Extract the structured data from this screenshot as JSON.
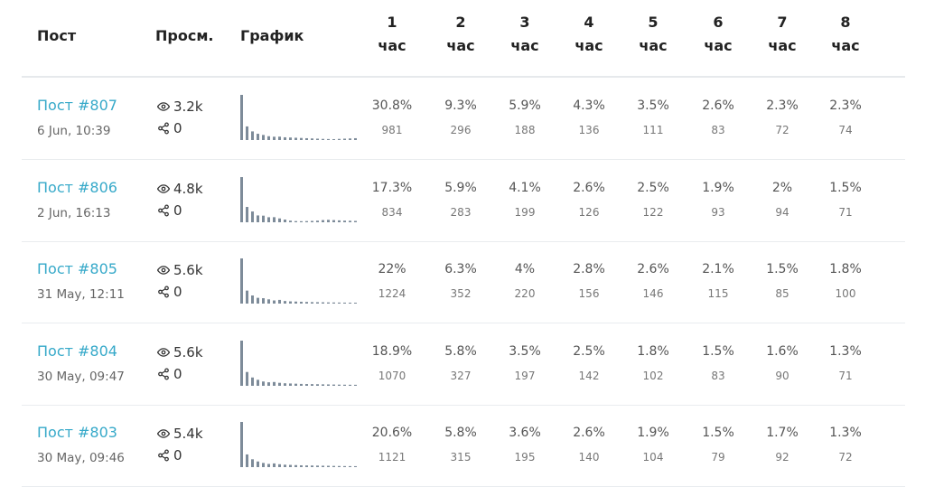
{
  "header": {
    "post": "Пост",
    "views": "Просм.",
    "graph": "График",
    "hours": [
      {
        "num": "1",
        "unit": "час"
      },
      {
        "num": "2",
        "unit": "час"
      },
      {
        "num": "3",
        "unit": "час"
      },
      {
        "num": "4",
        "unit": "час"
      },
      {
        "num": "5",
        "unit": "час"
      },
      {
        "num": "6",
        "unit": "час"
      },
      {
        "num": "7",
        "unit": "час"
      },
      {
        "num": "8",
        "unit": "час"
      }
    ]
  },
  "icons": {
    "views": "eye-icon",
    "shares": "share-icon"
  },
  "colors": {
    "link": "#36a9c9",
    "spark": "#7d8b99"
  },
  "rows": [
    {
      "title": "Пост #807",
      "date": "6 Jun, 10:39",
      "views": "3.2k",
      "shares": "0",
      "pct": [
        "30.8%",
        "9.3%",
        "5.9%",
        "4.3%",
        "3.5%",
        "2.6%",
        "2.3%",
        "2.3%"
      ],
      "cnt": [
        "981",
        "296",
        "188",
        "136",
        "111",
        "83",
        "72",
        "74"
      ],
      "spark": [
        981,
        296,
        188,
        136,
        111,
        83,
        72,
        74,
        60,
        55,
        50,
        45,
        40,
        35,
        30,
        25,
        22,
        20,
        25,
        30,
        35,
        40
      ]
    },
    {
      "title": "Пост #806",
      "date": "2 Jun, 16:13",
      "views": "4.8k",
      "shares": "0",
      "pct": [
        "17.3%",
        "5.9%",
        "4.1%",
        "2.6%",
        "2.5%",
        "1.9%",
        "2%",
        "1.5%"
      ],
      "cnt": [
        "834",
        "283",
        "199",
        "126",
        "122",
        "93",
        "94",
        "71"
      ],
      "spark": [
        834,
        283,
        199,
        126,
        122,
        93,
        94,
        71,
        50,
        30,
        22,
        20,
        22,
        25,
        30,
        40,
        45,
        40,
        35,
        30,
        28,
        25
      ]
    },
    {
      "title": "Пост #805",
      "date": "31 May, 12:11",
      "views": "5.6k",
      "shares": "0",
      "pct": [
        "22%",
        "6.3%",
        "4%",
        "2.8%",
        "2.6%",
        "2.1%",
        "1.5%",
        "1.8%"
      ],
      "cnt": [
        "1224",
        "352",
        "220",
        "156",
        "146",
        "115",
        "85",
        "100"
      ],
      "spark": [
        1224,
        352,
        220,
        156,
        146,
        115,
        85,
        100,
        70,
        60,
        55,
        50,
        45,
        40,
        38,
        35,
        32,
        30,
        28,
        26,
        25,
        24
      ]
    },
    {
      "title": "Пост #804",
      "date": "30 May, 09:47",
      "views": "5.6k",
      "shares": "0",
      "pct": [
        "18.9%",
        "5.8%",
        "3.5%",
        "2.5%",
        "1.8%",
        "1.5%",
        "1.6%",
        "1.3%"
      ],
      "cnt": [
        "1070",
        "327",
        "197",
        "142",
        "102",
        "83",
        "90",
        "71"
      ],
      "spark": [
        1070,
        327,
        197,
        142,
        102,
        83,
        90,
        71,
        60,
        55,
        50,
        45,
        42,
        40,
        38,
        35,
        33,
        30,
        28,
        26,
        25,
        24
      ]
    },
    {
      "title": "Пост #803",
      "date": "30 May, 09:46",
      "views": "5.4k",
      "shares": "0",
      "pct": [
        "20.6%",
        "5.8%",
        "3.6%",
        "2.6%",
        "1.9%",
        "1.5%",
        "1.7%",
        "1.3%"
      ],
      "cnt": [
        "1121",
        "315",
        "195",
        "140",
        "104",
        "79",
        "92",
        "72"
      ],
      "spark": [
        1121,
        315,
        195,
        140,
        104,
        79,
        92,
        72,
        60,
        55,
        50,
        45,
        42,
        40,
        38,
        35,
        33,
        30,
        28,
        26,
        25,
        24
      ]
    }
  ]
}
